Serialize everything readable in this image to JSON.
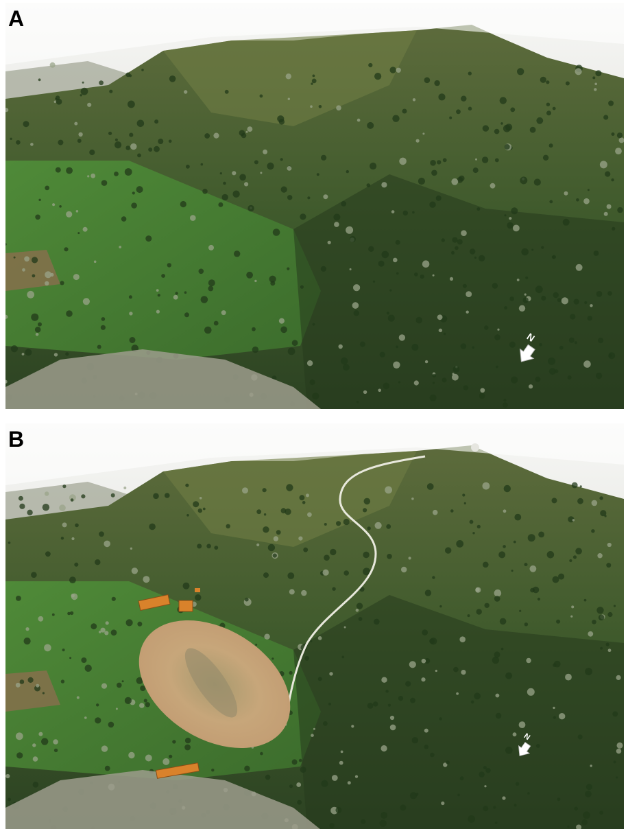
{
  "panels": [
    {
      "label": "A",
      "north": "N"
    },
    {
      "label": "B",
      "north": "N"
    }
  ]
}
